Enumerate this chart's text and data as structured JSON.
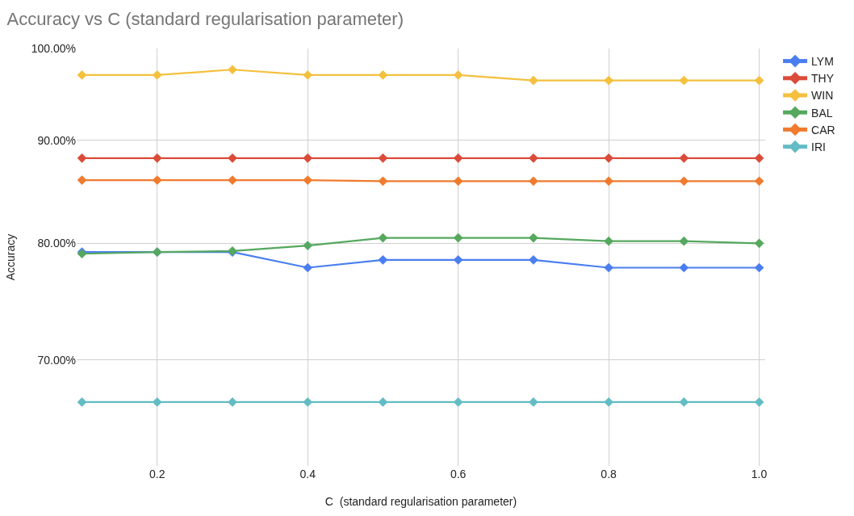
{
  "chart_data": {
    "type": "line",
    "title": "Accuracy vs C (standard regularisation parameter)",
    "xlabel": "C  (standard regularisation parameter)",
    "ylabel": "Accuracy",
    "x": [
      0.1,
      0.2,
      0.3,
      0.4,
      0.5,
      0.6,
      0.7,
      0.8,
      0.9,
      1.0
    ],
    "series": [
      {
        "name": "LYM",
        "color": "#4a7ef0",
        "values": [
          79.2,
          79.2,
          79.2,
          77.8,
          78.5,
          78.5,
          78.5,
          77.8,
          77.8,
          77.8
        ]
      },
      {
        "name": "THY",
        "color": "#db4b3a",
        "values": [
          88.2,
          88.2,
          88.2,
          88.2,
          88.2,
          88.2,
          88.2,
          88.2,
          88.2,
          88.2
        ]
      },
      {
        "name": "WIN",
        "color": "#f4c03e",
        "values": [
          97.0,
          97.0,
          97.6,
          97.0,
          97.0,
          97.0,
          96.4,
          96.4,
          96.4,
          96.4
        ]
      },
      {
        "name": "BAL",
        "color": "#55a85e",
        "values": [
          79.05,
          79.2,
          79.3,
          79.8,
          80.5,
          80.5,
          80.5,
          80.2,
          80.2,
          80.0
        ]
      },
      {
        "name": "CAR",
        "color": "#f07b2e",
        "values": [
          86.0,
          86.0,
          86.0,
          86.0,
          85.9,
          85.9,
          85.9,
          85.9,
          85.9,
          85.9
        ]
      },
      {
        "name": "IRI",
        "color": "#63bcc4",
        "values": [
          66.7,
          66.7,
          66.7,
          66.7,
          66.7,
          66.7,
          66.7,
          66.7,
          66.7,
          66.7
        ]
      }
    ],
    "xlim": [
      0.093,
      1.008
    ],
    "xticks": [
      0.2,
      0.4,
      0.6,
      0.8,
      {
        "value": 1.0,
        "label": "1.0"
      }
    ],
    "ylim": [
      62,
      100
    ],
    "yticks": [
      {
        "value": 70,
        "label": "70.00%"
      },
      {
        "value": 80,
        "label": "80.00%"
      },
      {
        "value": 90,
        "label": "90.00%"
      },
      {
        "value": 100,
        "label": "100.00%"
      }
    ],
    "log": "y",
    "grid": true,
    "legend": "top right",
    "marker": "diamond",
    "line_style": "solid"
  }
}
